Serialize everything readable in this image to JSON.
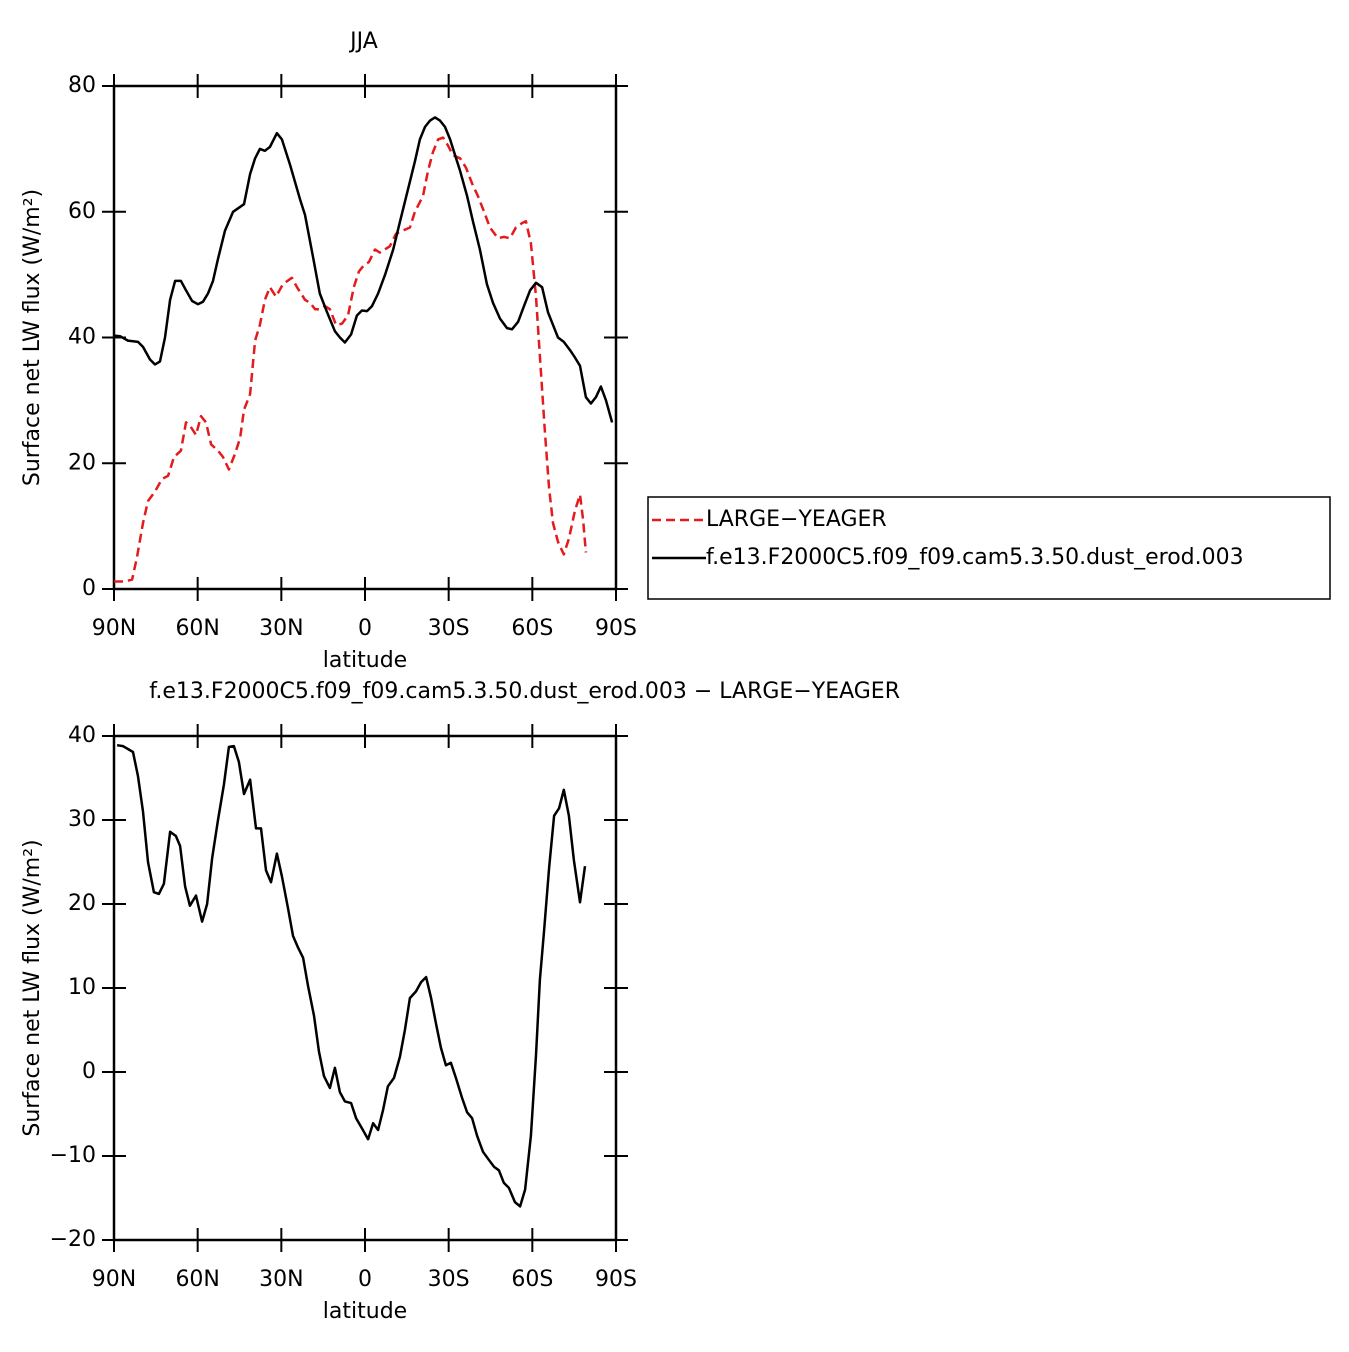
{
  "chart_data": [
    {
      "type": "line",
      "title": "JJA",
      "xlabel": "latitude",
      "ylabel": "Surface net LW flux (W/m²)",
      "xlim": [
        90,
        -90
      ],
      "ylim": [
        0,
        80
      ],
      "xticks": [
        {
          "value": 90,
          "label": "90N"
        },
        {
          "value": 60,
          "label": "60N"
        },
        {
          "value": 30,
          "label": "30N"
        },
        0,
        {
          "value": -30,
          "label": "30S"
        },
        {
          "value": -60,
          "label": "60S"
        },
        {
          "value": -90,
          "label": "90S"
        }
      ],
      "yticks": [
        0,
        20,
        40,
        60,
        80
      ],
      "legend": "right",
      "series": [
        {
          "name": "LARGE−YEAGER",
          "color": "#e41a1c",
          "line_style": "dashed",
          "x": [
            90,
            86.1,
            83.5,
            81.8,
            79.6,
            77.8,
            75.3,
            72.8,
            70.6,
            68.5,
            66.0,
            64.2,
            62.8,
            60.6,
            58.8,
            57.0,
            55.2,
            52.7,
            50.9,
            48.8,
            46.6,
            44.8,
            43.4,
            41.2,
            39.4,
            37.7,
            35.9,
            34.1,
            31.9,
            29.4,
            26.2,
            24.4,
            21.5,
            19.7,
            17.9,
            16.2,
            14.4,
            12.6,
            10.4,
            8.3,
            6.1,
            4.0,
            2.2,
            0.4,
            -1.4,
            -3.6,
            -5.3,
            -7.1,
            -8.9,
            -11.1,
            -13.6,
            -16.1,
            -17.9,
            -20.8,
            -22.6,
            -24.4,
            -26.2,
            -28.0,
            -29.8,
            -31.5,
            -34.1,
            -36.2,
            -38.4,
            -40.5,
            -42.7,
            -44.8,
            -47.7,
            -49.8,
            -52.0,
            -54.1,
            -56.3,
            -57.7,
            -59.5,
            -61.3,
            -62.7,
            -64.5,
            -66.0,
            -67.4,
            -69.2,
            -71.3,
            -73.1,
            -75.3,
            -77.1,
            -78.2,
            -79.2
          ],
          "values": [
            1.2,
            1.2,
            1.5,
            5,
            10.5,
            14,
            15.5,
            17.5,
            18,
            21,
            22,
            26.5,
            26,
            24.5,
            27.5,
            26.5,
            23,
            22,
            21,
            19,
            21.5,
            24,
            28.5,
            31,
            39.5,
            42,
            46,
            48,
            46.5,
            48.5,
            49.5,
            48,
            46,
            45.5,
            44.5,
            44.5,
            45,
            44.5,
            42,
            42.2,
            43.5,
            48,
            50.5,
            51.5,
            52,
            54,
            53.5,
            54,
            54.5,
            56.5,
            57,
            57.5,
            60,
            62.5,
            66.5,
            69.5,
            71.5,
            71.8,
            70.5,
            69,
            68.5,
            67,
            64.5,
            62.5,
            60,
            57.5,
            55.8,
            56,
            55.8,
            57.5,
            58.2,
            58.5,
            55,
            46.5,
            37,
            25,
            16,
            10.5,
            7.5,
            5.5,
            8,
            12.5,
            15,
            11,
            5.8
          ]
        },
        {
          "name": "f.e13.F2000C5.f09_f09.cam5.3.50.dust_erod.003",
          "color": "#000000",
          "line_style": "solid",
          "x": [
            90,
            87.8,
            85.0,
            81.4,
            79.6,
            77.1,
            75.3,
            73.5,
            71.7,
            69.9,
            68.1,
            66.0,
            64.2,
            62.0,
            59.9,
            58.1,
            56.3,
            54.5,
            52.7,
            50.2,
            47.3,
            43.4,
            41.2,
            39.4,
            37.7,
            35.9,
            34.1,
            31.6,
            29.8,
            26.9,
            23.3,
            21.5,
            18.7,
            16.2,
            13.6,
            10.8,
            9.0,
            7.2,
            5.0,
            2.9,
            1.1,
            -0.7,
            -2.5,
            -4.7,
            -7.2,
            -10.1,
            -12.6,
            -15.4,
            -17.9,
            -19.7,
            -21.5,
            -23.3,
            -25.1,
            -26.9,
            -28.7,
            -30.5,
            -32.3,
            -34.1,
            -36.6,
            -38.7,
            -41.2,
            -43.7,
            -45.9,
            -48.4,
            -50.9,
            -52.7,
            -54.9,
            -57.0,
            -59.2,
            -61.3,
            -63.5,
            -65.6,
            -67.4,
            -69.2,
            -71.3,
            -73.5,
            -75.3,
            -77.1,
            -79.2,
            -81.0,
            -82.8,
            -84.6,
            -86.4,
            -88.6
          ],
          "values": [
            40.3,
            40.2,
            39.5,
            39.3,
            38.5,
            36.5,
            35.7,
            36.2,
            40,
            46,
            49,
            49,
            47.5,
            45.8,
            45.3,
            45.7,
            47,
            49,
            52.5,
            57,
            60,
            61.2,
            66,
            68.5,
            70,
            69.7,
            70.3,
            72.5,
            71.5,
            67.5,
            62,
            59.5,
            53,
            47,
            44,
            41,
            40,
            39.2,
            40.5,
            43.5,
            44.3,
            44.2,
            45,
            47,
            50,
            54,
            58.5,
            63.5,
            68,
            71.5,
            73.5,
            74.5,
            75,
            74.5,
            73.5,
            71.5,
            69,
            66.5,
            62.5,
            58.5,
            54,
            48.5,
            45.5,
            43,
            41.5,
            41.3,
            42.5,
            45,
            47.5,
            48.7,
            48,
            44,
            42,
            40,
            39.3,
            38,
            36.8,
            35.5,
            30.5,
            29.5,
            30.5,
            32.2,
            30,
            26.5
          ]
        }
      ]
    },
    {
      "type": "line",
      "title": "f.e13.F2000C5.f09_f09.cam5.3.50.dust_erod.003 − LARGE−YEAGER",
      "xlabel": "latitude",
      "ylabel": "Surface net LW flux (W/m²)",
      "xlim": [
        90,
        -90
      ],
      "ylim": [
        -20,
        40
      ],
      "xticks": [
        {
          "value": 90,
          "label": "90N"
        },
        {
          "value": 60,
          "label": "60N"
        },
        {
          "value": 30,
          "label": "30N"
        },
        0,
        {
          "value": -30,
          "label": "30S"
        },
        {
          "value": -60,
          "label": "60S"
        },
        {
          "value": -90,
          "label": "90S"
        }
      ],
      "yticks": [
        {
          "value": -20,
          "label": "−20"
        },
        {
          "value": -10,
          "label": "−10"
        },
        0,
        10,
        20,
        30,
        40
      ],
      "series": [
        {
          "color": "#000000",
          "line_style": "solid",
          "x": [
            88.9,
            86.8,
            83.2,
            81.4,
            79.6,
            77.8,
            75.7,
            73.9,
            72.1,
            69.9,
            67.8,
            66.3,
            64.5,
            62.8,
            60.6,
            58.4,
            56.6,
            54.8,
            52.7,
            50.6,
            48.8,
            47.0,
            45.2,
            43.4,
            41.2,
            39.1,
            37.3,
            35.5,
            33.7,
            31.6,
            29.8,
            27.6,
            25.8,
            24.0,
            22.2,
            20.4,
            18.3,
            16.5,
            14.7,
            12.6,
            10.8,
            9.0,
            7.2,
            5.0,
            3.2,
            1.1,
            -1.1,
            -2.9,
            -4.7,
            -6.5,
            -8.2,
            -10.4,
            -12.5,
            -14.3,
            -16.1,
            -18.3,
            -20.1,
            -21.9,
            -23.7,
            -25.5,
            -27.2,
            -29.0,
            -30.8,
            -32.6,
            -34.8,
            -36.6,
            -38.4,
            -40.2,
            -42.3,
            -44.5,
            -46.3,
            -48.0,
            -49.8,
            -51.6,
            -53.8,
            -55.6,
            -57.4,
            -59.5,
            -61.3,
            -62.7,
            -64.2,
            -66.0,
            -67.8,
            -69.6,
            -71.3,
            -73.1,
            -74.9,
            -77.1,
            -78.9
          ],
          "values": [
            38.9,
            38.8,
            38.1,
            35.2,
            31.0,
            25.0,
            21.4,
            21.2,
            22.4,
            28.6,
            28.1,
            26.9,
            22.1,
            19.8,
            21.0,
            17.9,
            20.0,
            25.5,
            30.0,
            34.2,
            38.7,
            38.8,
            36.9,
            33.1,
            34.8,
            29.0,
            29.0,
            24.0,
            22.6,
            26.0,
            23.3,
            19.5,
            16.2,
            14.8,
            13.6,
            10.2,
            6.7,
            2.4,
            -0.5,
            -1.9,
            0.5,
            -2.4,
            -3.5,
            -3.7,
            -5.5,
            -6.7,
            -8.0,
            -6.1,
            -6.9,
            -4.5,
            -1.7,
            -0.7,
            1.8,
            5.0,
            8.8,
            9.6,
            10.7,
            11.3,
            8.8,
            5.7,
            2.9,
            0.8,
            1.1,
            -0.7,
            -3.1,
            -4.8,
            -5.5,
            -7.6,
            -9.5,
            -10.5,
            -11.3,
            -11.7,
            -13.2,
            -13.8,
            -15.5,
            -16.0,
            -14.0,
            -7.6,
            2.0,
            11.0,
            16.7,
            24.3,
            30.5,
            31.4,
            33.6,
            30.5,
            25.2,
            20.2,
            24.5
          ]
        }
      ]
    }
  ]
}
